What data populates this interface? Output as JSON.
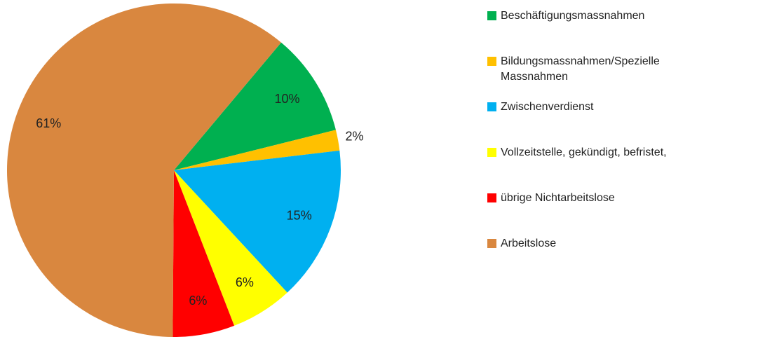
{
  "chart_data": {
    "type": "pie",
    "categories": [
      "Beschäftigungsmassnahmen",
      "Bildungsmassnahmen/Spezielle Massnahmen",
      "Zwischenverdienst",
      "Vollzeitstelle, gekündigt, befristet,",
      "übrige Nichtarbeitslose",
      "Arbeitslose"
    ],
    "values": [
      10,
      2,
      15,
      6,
      6,
      61
    ],
    "value_labels": [
      "10%",
      "2%",
      "15%",
      "6%",
      "6%",
      "61%"
    ],
    "colors": [
      "#00b050",
      "#ffc000",
      "#00b0f0",
      "#ffff00",
      "#ff0000",
      "#d9873f"
    ],
    "legend": "right"
  }
}
